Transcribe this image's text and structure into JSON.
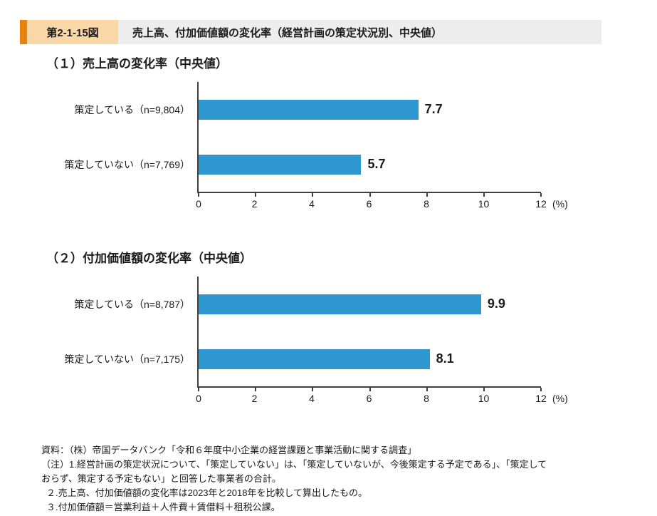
{
  "header": {
    "figure_number": "第2-1-15図",
    "title": "売上高、付加価値額の変化率（経営計画の策定状況別、中央値）"
  },
  "colors": {
    "accent_orange": "#E8820E",
    "badge_peach": "#FAD7A6",
    "strip_gray": "#EDEDED",
    "bar_blue": "#2E97CF",
    "axis_gray": "#3F3F3F"
  },
  "chart_data": [
    {
      "type": "bar",
      "orientation": "horizontal",
      "title": "（１）売上高の変化率（中央値）",
      "categories": [
        "策定している（n=9,804）",
        "策定していない（n=7,769）"
      ],
      "values": [
        7.7,
        5.7
      ],
      "xticks": [
        "0",
        "2",
        "4",
        "6",
        "8",
        "10",
        "12"
      ],
      "x_unit": "(%)",
      "xlim": [
        0,
        12
      ],
      "grid": "off",
      "legend": "none",
      "bar_color": "#2E97CF"
    },
    {
      "type": "bar",
      "orientation": "horizontal",
      "title": "（２）付加価値額の変化率（中央値）",
      "categories": [
        "策定している（n=8,787）",
        "策定していない（n=7,175）"
      ],
      "values": [
        9.9,
        8.1
      ],
      "xticks": [
        "0",
        "2",
        "4",
        "6",
        "8",
        "10",
        "12"
      ],
      "x_unit": "(%)",
      "xlim": [
        0,
        12
      ],
      "grid": "off",
      "legend": "none",
      "bar_color": "#2E97CF"
    }
  ],
  "footnotes": {
    "lines": [
      "資料：（株）帝国データバンク「令和６年度中小企業の経営課題と事業活動に関する調査」",
      "（注）1.経営計画の策定状況について、「策定していない」は、「策定していないが、今後策定する予定である」、「策定して",
      "おらず、策定する予定もない」と回答した事業者の合計。",
      "２.売上高、付加価値額の変化率は2023年と2018年を比較して算出したもの。",
      "３.付加価値額＝営業利益＋人件費＋賃借料＋租税公課。"
    ]
  }
}
